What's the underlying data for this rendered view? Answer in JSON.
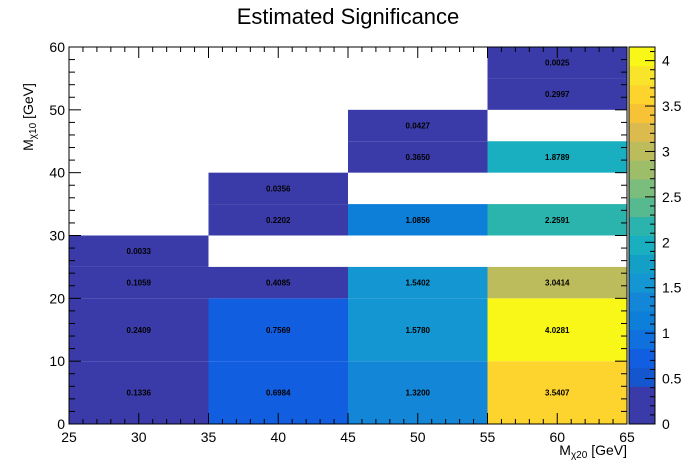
{
  "chart_data": {
    "type": "heatmap",
    "title": "Estimated Significance",
    "xlabel": "Mχ20 [GeV]",
    "xlabel_main": "M",
    "xlabel_sub": "χ20",
    "xlabel_unit": " [GeV]",
    "ylabel": "Mχ10 [GeV]",
    "ylabel_main": "M",
    "ylabel_sub": "χ10",
    "ylabel_unit": " [GeV]",
    "xlim": [
      25,
      65
    ],
    "ylim": [
      0,
      60
    ],
    "x_ticks": [
      25,
      30,
      35,
      40,
      45,
      50,
      55,
      60,
      65
    ],
    "y_ticks": [
      0,
      10,
      20,
      30,
      40,
      50,
      60
    ],
    "colorbar": {
      "range": [
        0,
        4.15
      ],
      "ticks": [
        0,
        0.5,
        1,
        1.5,
        2,
        2.5,
        3,
        3.5,
        4
      ],
      "tick_labels": [
        "0",
        "0.5",
        "1",
        "1.5",
        "2",
        "2.5",
        "3",
        "3.5",
        "4"
      ]
    },
    "cells": [
      {
        "x": [
          25,
          35
        ],
        "y": [
          0,
          10
        ],
        "value": 0.1336,
        "label": "0.1336"
      },
      {
        "x": [
          25,
          35
        ],
        "y": [
          10,
          20
        ],
        "value": 0.2409,
        "label": "0.2409"
      },
      {
        "x": [
          25,
          35
        ],
        "y": [
          20,
          25
        ],
        "value": 0.1059,
        "label": "0.1059"
      },
      {
        "x": [
          25,
          35
        ],
        "y": [
          25,
          30
        ],
        "value": 0.0033,
        "label": "0.0033"
      },
      {
        "x": [
          35,
          45
        ],
        "y": [
          0,
          10
        ],
        "value": 0.6984,
        "label": "0.6984"
      },
      {
        "x": [
          35,
          45
        ],
        "y": [
          10,
          20
        ],
        "value": 0.7569,
        "label": "0.7569"
      },
      {
        "x": [
          35,
          45
        ],
        "y": [
          20,
          25
        ],
        "value": 0.4085,
        "label": "0.4085"
      },
      {
        "x": [
          35,
          45
        ],
        "y": [
          30,
          35
        ],
        "value": 0.2202,
        "label": "0.2202"
      },
      {
        "x": [
          35,
          45
        ],
        "y": [
          35,
          40
        ],
        "value": 0.0356,
        "label": "0.0356"
      },
      {
        "x": [
          45,
          55
        ],
        "y": [
          0,
          10
        ],
        "value": 1.32,
        "label": "1.3200"
      },
      {
        "x": [
          45,
          55
        ],
        "y": [
          10,
          20
        ],
        "value": 1.578,
        "label": "1.5780"
      },
      {
        "x": [
          45,
          55
        ],
        "y": [
          20,
          25
        ],
        "value": 1.5402,
        "label": "1.5402"
      },
      {
        "x": [
          45,
          55
        ],
        "y": [
          30,
          35
        ],
        "value": 1.0856,
        "label": "1.0856"
      },
      {
        "x": [
          45,
          55
        ],
        "y": [
          40,
          45
        ],
        "value": 0.365,
        "label": "0.3650"
      },
      {
        "x": [
          45,
          55
        ],
        "y": [
          45,
          50
        ],
        "value": 0.0427,
        "label": "0.0427"
      },
      {
        "x": [
          55,
          65
        ],
        "y": [
          0,
          10
        ],
        "value": 3.5407,
        "label": "3.5407"
      },
      {
        "x": [
          55,
          65
        ],
        "y": [
          10,
          20
        ],
        "value": 4.0281,
        "label": "4.0281"
      },
      {
        "x": [
          55,
          65
        ],
        "y": [
          20,
          25
        ],
        "value": 3.0414,
        "label": "3.0414"
      },
      {
        "x": [
          55,
          65
        ],
        "y": [
          30,
          35
        ],
        "value": 2.2591,
        "label": "2.2591"
      },
      {
        "x": [
          55,
          65
        ],
        "y": [
          40,
          45
        ],
        "value": 1.8789,
        "label": "1.8789"
      },
      {
        "x": [
          55,
          65
        ],
        "y": [
          50,
          55
        ],
        "value": 0.2997,
        "label": "0.2997"
      },
      {
        "x": [
          55,
          65
        ],
        "y": [
          55,
          60
        ],
        "value": 0.0025,
        "label": "0.0025"
      }
    ],
    "palette": [
      "#3a3ba8",
      "#3a3ba8",
      "#1456cd",
      "#125ee0",
      "#0f70de",
      "#0d7fd9",
      "#1486d8",
      "#1496d2",
      "#14a0c6",
      "#19aec0",
      "#2ab4ad",
      "#56b990",
      "#7bbd7c",
      "#9dbd69",
      "#bcbc5c",
      "#dbbb4e",
      "#f7c235",
      "#fdd32d",
      "#f8e42a",
      "#f8f718"
    ],
    "grid": false
  }
}
